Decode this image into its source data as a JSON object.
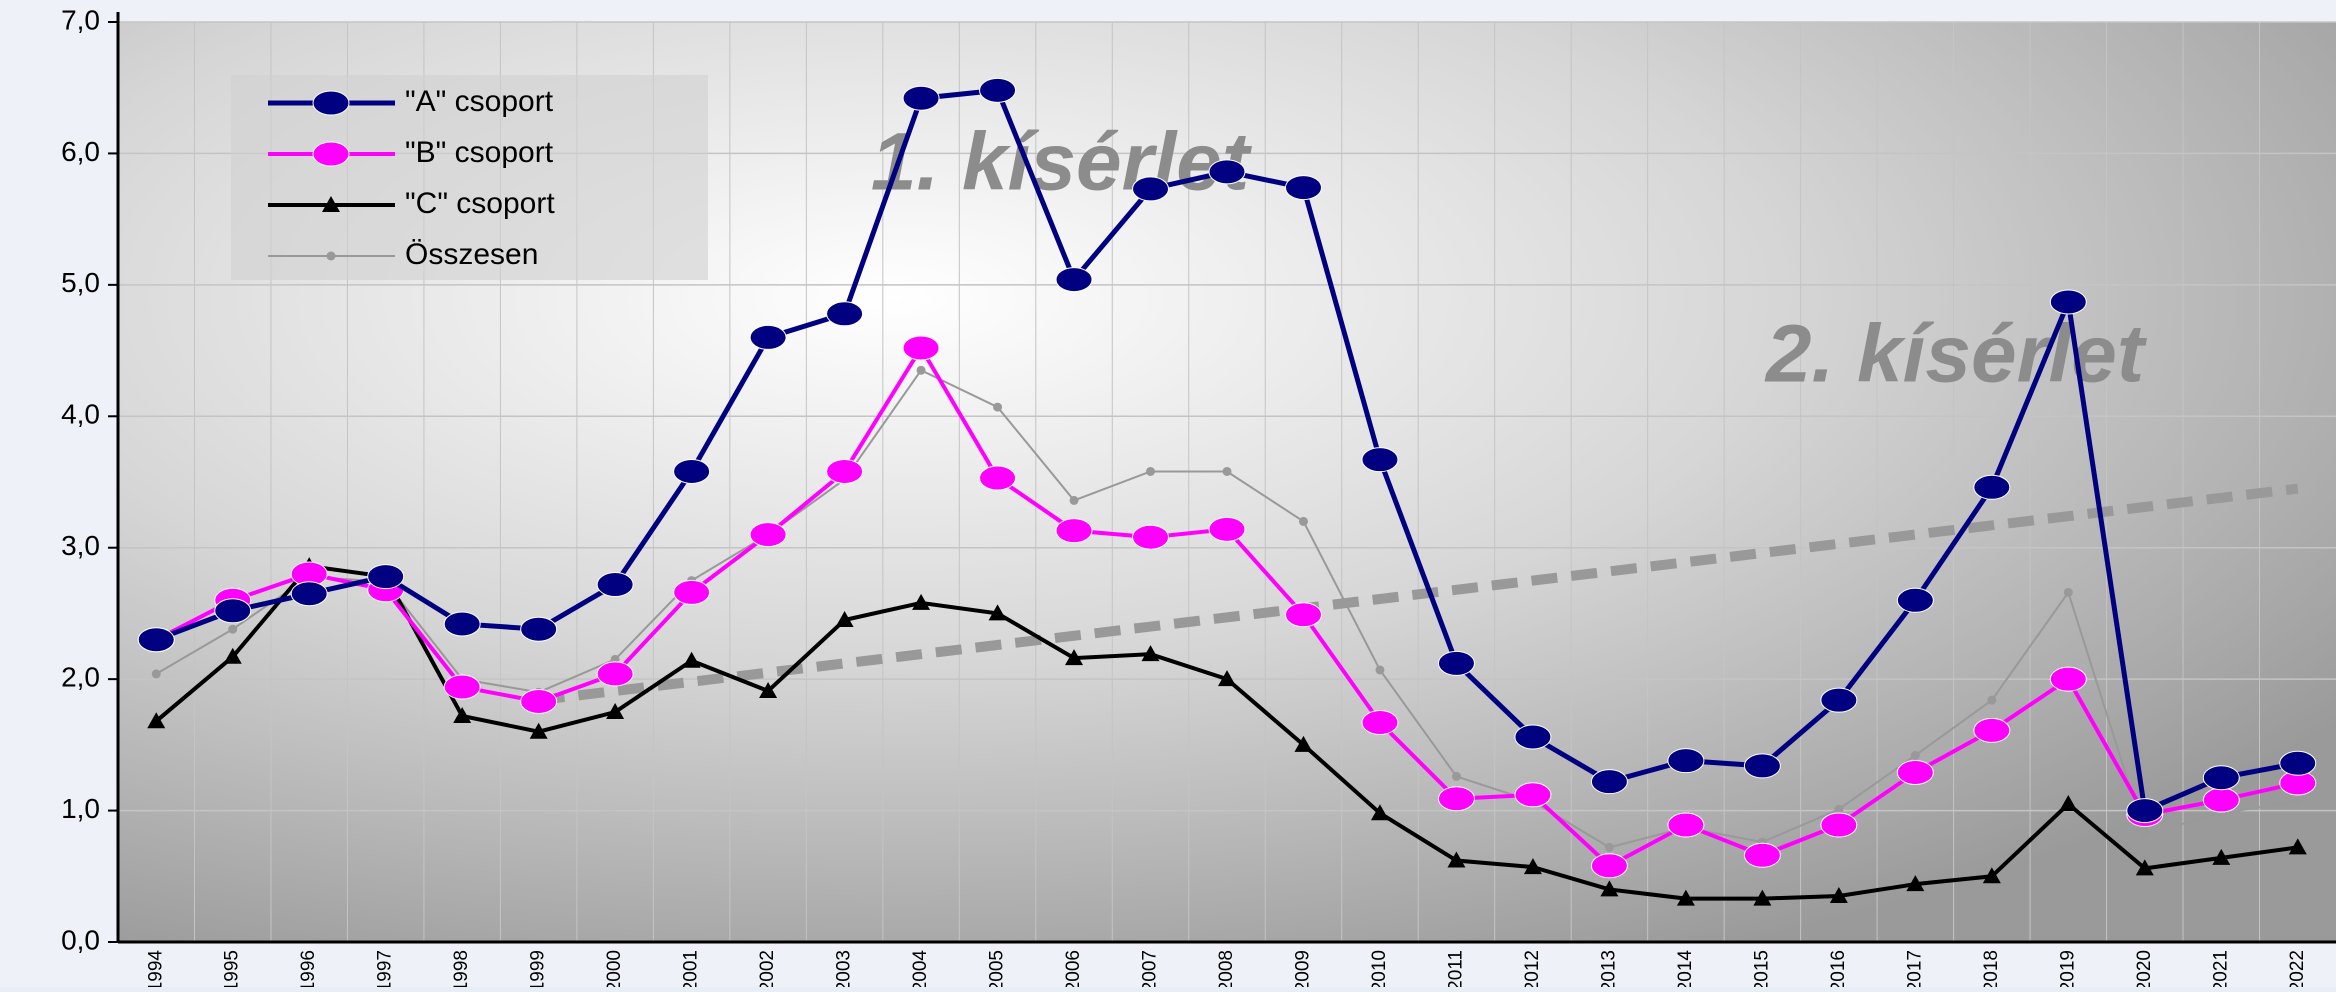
{
  "chart_data": {
    "type": "line",
    "categories": [
      "1994",
      "1995",
      "1996",
      "1997",
      "1998",
      "1999",
      "2000",
      "2001",
      "2002",
      "2003",
      "2004",
      "2005",
      "2006",
      "2007",
      "2008",
      "2009",
      "2010",
      "2011",
      "2012",
      "2013",
      "2014",
      "2015",
      "2016",
      "2017",
      "2018",
      "2019",
      "2020",
      "2021",
      "2022"
    ],
    "series": [
      {
        "name": "\"A\" csoport",
        "color": "#000080",
        "marker": "ellipse",
        "width": 5,
        "values": [
          2.3,
          2.52,
          2.65,
          2.78,
          2.42,
          2.38,
          2.72,
          3.58,
          4.6,
          4.78,
          6.42,
          6.48,
          5.04,
          5.73,
          5.86,
          5.74,
          3.67,
          2.12,
          1.56,
          1.22,
          1.38,
          1.34,
          1.84,
          2.6,
          3.46,
          4.87,
          1.0,
          1.25,
          1.36
        ]
      },
      {
        "name": "\"B\" csoport",
        "color": "#ff00ff",
        "marker": "ellipse",
        "width": 4,
        "values": [
          2.3,
          2.6,
          2.8,
          2.68,
          1.94,
          1.83,
          2.04,
          2.66,
          3.1,
          3.58,
          4.52,
          3.53,
          3.13,
          3.08,
          3.14,
          2.49,
          1.67,
          1.09,
          1.12,
          0.58,
          0.89,
          0.66,
          0.89,
          1.29,
          1.61,
          2.0,
          0.97,
          1.08,
          1.21
        ]
      },
      {
        "name": "\"C\" csoport",
        "color": "#000000",
        "marker": "triangle",
        "width": 4,
        "values": [
          1.68,
          2.17,
          2.86,
          2.78,
          1.72,
          1.6,
          1.75,
          2.14,
          1.91,
          2.45,
          2.58,
          2.5,
          2.16,
          2.19,
          2.0,
          1.5,
          0.98,
          0.62,
          0.57,
          0.4,
          0.33,
          0.33,
          0.35,
          0.44,
          0.5,
          1.05,
          0.56,
          0.64,
          0.72
        ]
      },
      {
        "name": "Összesen",
        "color": "#999999",
        "marker": "dot",
        "width": 2,
        "values": [
          2.04,
          2.38,
          2.78,
          2.74,
          2.0,
          1.9,
          2.15,
          2.75,
          3.1,
          3.52,
          4.35,
          4.07,
          3.36,
          3.58,
          3.58,
          3.2,
          2.07,
          1.26,
          1.07,
          0.72,
          0.87,
          0.76,
          1.01,
          1.42,
          1.84,
          2.66,
          0.82,
          0.98,
          1.07
        ]
      }
    ],
    "trend": {
      "x": [
        1999,
        2022
      ],
      "values": [
        1.84,
        3.45
      ],
      "color": "#999999"
    },
    "annotations": [
      "1. kísérlet",
      "2. kísérlet"
    ],
    "ylim": [
      0,
      7
    ],
    "yticks": [
      {
        "value": 0,
        "label": "0,0"
      },
      {
        "value": 1,
        "label": "1,0"
      },
      {
        "value": 2,
        "label": "2,0"
      },
      {
        "value": 3,
        "label": "3,0"
      },
      {
        "value": 4,
        "label": "4,0"
      },
      {
        "value": 5,
        "label": "5,0"
      },
      {
        "value": 6,
        "label": "6,0"
      },
      {
        "value": 7,
        "label": "7,0"
      }
    ],
    "grid": true,
    "legend": "top-left"
  }
}
